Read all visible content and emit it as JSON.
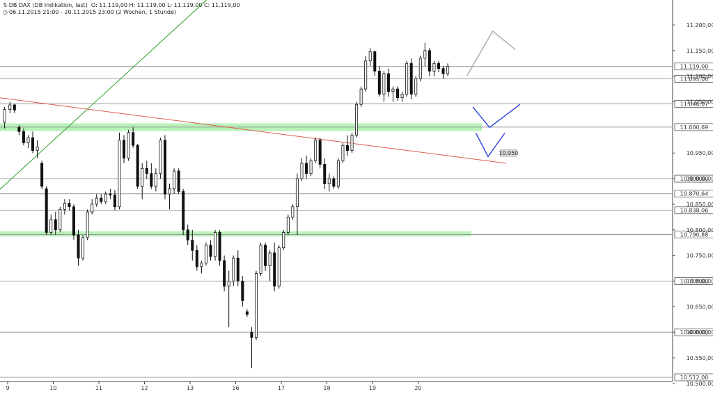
{
  "header": {
    "instrument": "DB DAX (DB Indikation, last)",
    "ohlc": "O: 11.119,00  H: 11.119,00  L: 11.119,00  C: 11.119,00",
    "period": "06.11.2015 21:00 - 20.11.2015 23:00 (2 Wochen, 1 Stunde)"
  },
  "chart_data": {
    "type": "candlestick",
    "y_range": [
      10500,
      11250
    ],
    "y_ticks": [
      {
        "value": 11200,
        "label": "11.200,00"
      },
      {
        "value": 11150,
        "label": "11.150,00"
      },
      {
        "value": 11100,
        "label": "11.100,00"
      },
      {
        "value": 11050,
        "label": "11.050,00"
      },
      {
        "value": 10950,
        "label": "10.950,00"
      },
      {
        "value": 10900,
        "label": "10.900,00"
      },
      {
        "value": 10850,
        "label": "10.850,00"
      },
      {
        "value": 10800,
        "label": "10.800,00"
      },
      {
        "value": 10750,
        "label": "10.750,00"
      },
      {
        "value": 10700,
        "label": "10.700,00"
      },
      {
        "value": 10650,
        "label": "10.650,00"
      },
      {
        "value": 10600,
        "label": "10.600,00"
      },
      {
        "value": 10550,
        "label": "10.550,00"
      },
      {
        "value": 10500,
        "label": "10.500,00"
      }
    ],
    "levels": [
      {
        "value": 11119,
        "label": "11.119,00"
      },
      {
        "value": 11095,
        "label": "11.095,00"
      },
      {
        "value": 11046.07,
        "label": "11.046,07"
      },
      {
        "value": 11000.69,
        "label": "11.000,69"
      },
      {
        "value": 10900,
        "label": "10.900,00"
      },
      {
        "value": 10870.64,
        "label": "10.870,64"
      },
      {
        "value": 10838.06,
        "label": "10.838,06"
      },
      {
        "value": 10790.88,
        "label": "10.790,88"
      },
      {
        "value": 10700,
        "label": "10.700,00"
      },
      {
        "value": 10600,
        "label": "10.600,00"
      },
      {
        "value": 10512,
        "label": "10.512,00"
      }
    ],
    "zones": [
      {
        "from": 10993,
        "to": 11008,
        "x_end": 31.2
      },
      {
        "from": 10787,
        "to": 10797,
        "x_end": 30.5
      }
    ],
    "x_labels": [
      {
        "x": 0,
        "label": "9"
      },
      {
        "x": 3,
        "label": "10"
      },
      {
        "x": 6,
        "label": "11"
      },
      {
        "x": 9,
        "label": "12"
      },
      {
        "x": 12,
        "label": "13"
      },
      {
        "x": 15,
        "label": "16"
      },
      {
        "x": 18,
        "label": "17"
      },
      {
        "x": 21,
        "label": "18"
      },
      {
        "x": 24,
        "label": "19"
      },
      {
        "x": 27,
        "label": "20"
      }
    ],
    "trendlines": [
      {
        "color": "#2a9d2a",
        "points": [
          [
            -0.55,
            10878
          ],
          [
            16.8,
            11350
          ]
        ]
      },
      {
        "color": "#e05a4a",
        "points": [
          [
            -0.55,
            11058
          ],
          [
            32.8,
            10930
          ]
        ]
      }
    ],
    "annotation": {
      "x": 32.9,
      "value": 10950,
      "label": "10.950"
    },
    "projections": [
      {
        "color": "#a9a9a9",
        "points": [
          [
            30.2,
            11100
          ],
          [
            31.9,
            11188
          ],
          [
            33.4,
            11152
          ]
        ]
      },
      {
        "color": "#2a3fe0",
        "points": [
          [
            30.6,
            11040
          ],
          [
            31.7,
            11000
          ],
          [
            33.7,
            11045
          ]
        ]
      },
      {
        "color": "#2a3fe0",
        "points": [
          [
            30.8,
            10989
          ],
          [
            31.6,
            10943
          ],
          [
            32.7,
            10989
          ]
        ]
      }
    ],
    "candles": [
      [
        -0.2,
        11010,
        11040,
        10998,
        11035
      ],
      [
        0.15,
        11035,
        11050,
        11028,
        11044
      ],
      [
        0.45,
        11044,
        11046,
        11028,
        11034
      ],
      [
        0.75,
        11000,
        11005,
        10985,
        10992
      ],
      [
        1.05,
        10992,
        10998,
        10965,
        10970
      ],
      [
        1.35,
        10970,
        10985,
        10960,
        10980
      ],
      [
        1.65,
        10980,
        10992,
        10950,
        10955
      ],
      [
        1.95,
        10955,
        10975,
        10940,
        10962
      ],
      [
        2.25,
        10930,
        10935,
        10880,
        10885
      ],
      [
        2.55,
        10880,
        10885,
        10790,
        10795
      ],
      [
        2.85,
        10795,
        10830,
        10790,
        10820
      ],
      [
        3.15,
        10820,
        10835,
        10790,
        10800
      ],
      [
        3.45,
        10800,
        10845,
        10795,
        10840
      ],
      [
        3.75,
        10840,
        10860,
        10830,
        10852
      ],
      [
        4.05,
        10852,
        10860,
        10838,
        10845
      ],
      [
        4.35,
        10845,
        10850,
        10780,
        10790
      ],
      [
        4.65,
        10790,
        10800,
        10730,
        10745
      ],
      [
        4.95,
        10745,
        10790,
        10740,
        10785
      ],
      [
        5.25,
        10785,
        10840,
        10780,
        10835
      ],
      [
        5.55,
        10835,
        10860,
        10830,
        10850
      ],
      [
        5.85,
        10850,
        10870,
        10845,
        10862
      ],
      [
        6.15,
        10862,
        10870,
        10850,
        10855
      ],
      [
        6.45,
        10855,
        10875,
        10850,
        10870
      ],
      [
        6.75,
        10870,
        10880,
        10860,
        10868
      ],
      [
        7.05,
        10868,
        10878,
        10838,
        10845
      ],
      [
        7.35,
        10845,
        10990,
        10840,
        10975
      ],
      [
        7.65,
        10975,
        10985,
        10930,
        10940
      ],
      [
        7.95,
        10940,
        10995,
        10935,
        10990
      ],
      [
        8.25,
        10990,
        11000,
        10960,
        10965
      ],
      [
        8.55,
        10965,
        10968,
        10880,
        10885
      ],
      [
        8.85,
        10885,
        10930,
        10860,
        10920
      ],
      [
        9.15,
        10920,
        10935,
        10900,
        10910
      ],
      [
        9.45,
        10910,
        10930,
        10880,
        10885
      ],
      [
        9.75,
        10885,
        10920,
        10875,
        10910
      ],
      [
        10.05,
        10910,
        10980,
        10900,
        10975
      ],
      [
        10.35,
        10975,
        10985,
        10860,
        10870
      ],
      [
        10.65,
        10870,
        10890,
        10840,
        10880
      ],
      [
        10.95,
        10880,
        10920,
        10870,
        10915
      ],
      [
        11.25,
        10915,
        10920,
        10870,
        10875
      ],
      [
        11.55,
        10875,
        10880,
        10790,
        10800
      ],
      [
        11.85,
        10800,
        10810,
        10770,
        10780
      ],
      [
        12.15,
        10780,
        10800,
        10740,
        10760
      ],
      [
        12.45,
        10760,
        10770,
        10720,
        10728
      ],
      [
        12.75,
        10728,
        10740,
        10715,
        10735
      ],
      [
        13.05,
        10735,
        10775,
        10730,
        10770
      ],
      [
        13.35,
        10770,
        10780,
        10740,
        10748
      ],
      [
        13.65,
        10748,
        10800,
        10740,
        10795
      ],
      [
        13.95,
        10795,
        10800,
        10730,
        10740
      ],
      [
        14.25,
        10740,
        10750,
        10680,
        10690
      ],
      [
        14.55,
        10690,
        10720,
        10610,
        10700
      ],
      [
        14.85,
        10700,
        10750,
        10690,
        10745
      ],
      [
        15.15,
        10745,
        10760,
        10690,
        10700
      ],
      [
        15.45,
        10700,
        10710,
        10650,
        10662
      ],
      [
        15.75,
        10640,
        10645,
        10630,
        10635
      ],
      [
        16.05,
        10600,
        10610,
        10530,
        10590
      ],
      [
        16.35,
        10590,
        10720,
        10585,
        10715
      ],
      [
        16.65,
        10715,
        10775,
        10710,
        10770
      ],
      [
        16.95,
        10770,
        10775,
        10720,
        10730
      ],
      [
        17.25,
        10730,
        10760,
        10700,
        10755
      ],
      [
        17.55,
        10755,
        10775,
        10680,
        10690
      ],
      [
        17.85,
        10690,
        10770,
        10685,
        10765
      ],
      [
        18.15,
        10765,
        10800,
        10760,
        10795
      ],
      [
        18.45,
        10795,
        10830,
        10790,
        10825
      ],
      [
        18.75,
        10825,
        10850,
        10820,
        10845
      ],
      [
        19.05,
        10845,
        10910,
        10790,
        10900
      ],
      [
        19.35,
        10900,
        10940,
        10895,
        10930
      ],
      [
        19.65,
        10930,
        10945,
        10900,
        10910
      ],
      [
        19.95,
        10910,
        10940,
        10905,
        10935
      ],
      [
        20.25,
        10935,
        10980,
        10930,
        10975
      ],
      [
        20.55,
        10975,
        10980,
        10920,
        10928
      ],
      [
        20.85,
        10928,
        10940,
        10880,
        10890
      ],
      [
        21.15,
        10890,
        10910,
        10875,
        10900
      ],
      [
        21.45,
        10900,
        10905,
        10880,
        10885
      ],
      [
        21.75,
        10885,
        10940,
        10880,
        10935
      ],
      [
        22.05,
        10935,
        10970,
        10930,
        10965
      ],
      [
        22.35,
        10965,
        10985,
        10945,
        10955
      ],
      [
        22.65,
        10955,
        10990,
        10950,
        10985
      ],
      [
        22.95,
        10985,
        11050,
        10980,
        11045
      ],
      [
        23.25,
        11045,
        11080,
        11040,
        11075
      ],
      [
        23.55,
        11075,
        11140,
        11070,
        11130
      ],
      [
        23.85,
        11130,
        11155,
        11120,
        11148
      ],
      [
        24.15,
        11148,
        11150,
        11100,
        11110
      ],
      [
        24.45,
        11110,
        11120,
        11060,
        11065
      ],
      [
        24.75,
        11065,
        11110,
        11050,
        11105
      ],
      [
        25.05,
        11105,
        11115,
        11060,
        11070
      ],
      [
        25.35,
        11070,
        11080,
        11050,
        11075
      ],
      [
        25.65,
        11075,
        11080,
        11052,
        11058
      ],
      [
        25.95,
        11058,
        11070,
        11050,
        11065
      ],
      [
        26.25,
        11065,
        11130,
        11060,
        11125
      ],
      [
        26.55,
        11125,
        11135,
        11055,
        11065
      ],
      [
        26.85,
        11065,
        11100,
        11060,
        11095
      ],
      [
        27.15,
        11095,
        11140,
        11090,
        11135
      ],
      [
        27.45,
        11135,
        11165,
        11120,
        11150
      ],
      [
        27.75,
        11150,
        11155,
        11100,
        11110
      ],
      [
        28.05,
        11110,
        11130,
        11100,
        11125
      ],
      [
        28.35,
        11125,
        11130,
        11108,
        11115
      ],
      [
        28.65,
        11115,
        11120,
        11095,
        11105
      ],
      [
        28.95,
        11105,
        11125,
        11100,
        11119
      ]
    ]
  }
}
